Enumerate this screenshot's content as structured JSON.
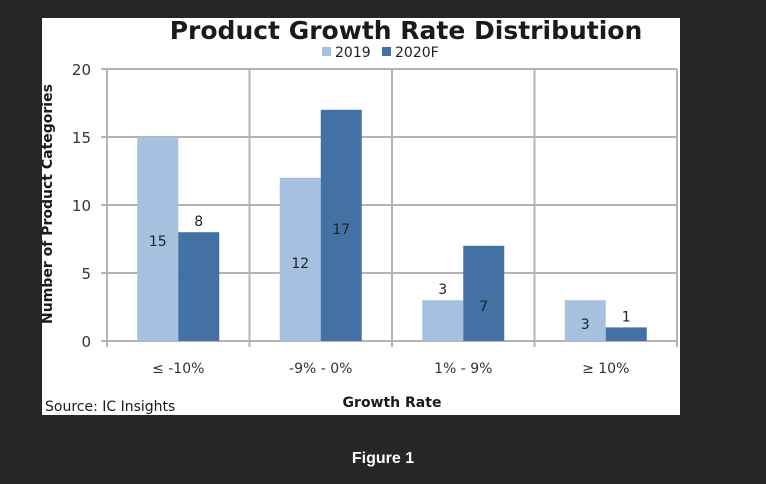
{
  "caption": "Figure 1",
  "chart_data": {
    "type": "bar",
    "title": "Product Growth Rate Distribution",
    "xlabel": "Growth Rate",
    "ylabel": "Number of Product Categories",
    "categories": [
      "≤ -10%",
      "-9% - 0%",
      "1% - 9%",
      "≥ 10%"
    ],
    "series": [
      {
        "name": "2019",
        "color": "#a6c0df",
        "values": [
          15,
          12,
          3,
          3
        ]
      },
      {
        "name": "2020F",
        "color": "#4471a3",
        "values": [
          8,
          17,
          7,
          1
        ]
      }
    ],
    "ylim": [
      0,
      20
    ],
    "yticks": [
      "0",
      "5",
      "10",
      "15",
      "20"
    ],
    "grid": true,
    "legend": "top",
    "source": "Source:  IC Insights"
  }
}
